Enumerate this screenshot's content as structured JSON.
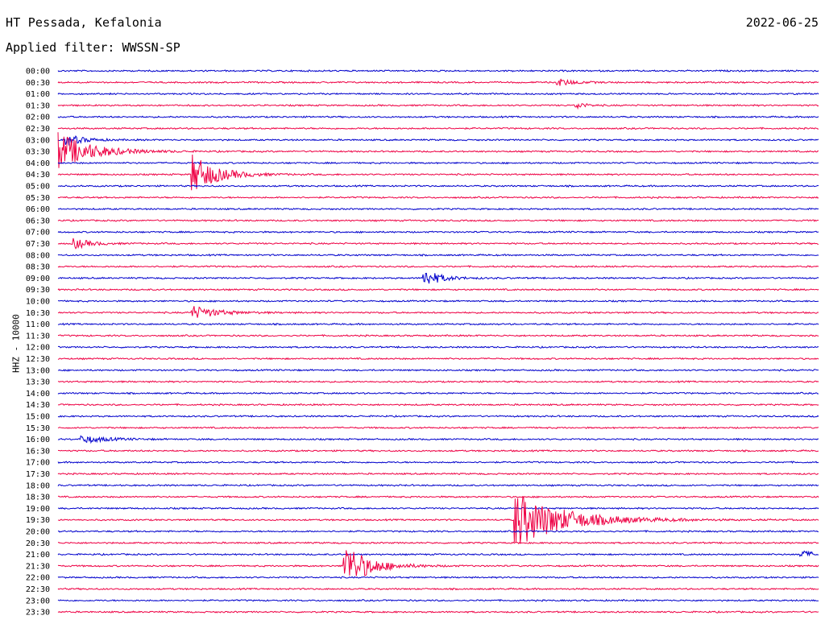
{
  "header": {
    "station": "HT Pessada, Kefalonia",
    "date": "2022-06-25",
    "filter": "Applied filter: WWSSN-SP"
  },
  "chart_data": {
    "type": "line",
    "title": "HT Pessada, Kefalonia",
    "ylabel": "HHZ - 10000",
    "colors": [
      "#0000cc",
      "#ee0044"
    ],
    "row_labels": [
      "00:00",
      "00:30",
      "01:00",
      "01:30",
      "02:00",
      "02:30",
      "03:00",
      "03:30",
      "04:00",
      "04:30",
      "05:00",
      "05:30",
      "06:00",
      "06:30",
      "07:00",
      "07:30",
      "08:00",
      "08:30",
      "09:00",
      "09:30",
      "10:00",
      "10:30",
      "11:00",
      "11:30",
      "12:00",
      "12:30",
      "13:00",
      "13:30",
      "14:00",
      "14:30",
      "15:00",
      "15:30",
      "16:00",
      "16:30",
      "17:00",
      "17:30",
      "18:00",
      "18:30",
      "19:00",
      "19:30",
      "20:00",
      "20:30",
      "21:00",
      "21:30",
      "22:00",
      "22:30",
      "23:00",
      "23:30"
    ],
    "events": [
      {
        "row": 6,
        "t": 0.01,
        "amp": 8,
        "decay": 0.02
      },
      {
        "row": 7,
        "t": 0.0,
        "amp": 24,
        "decay": 0.04
      },
      {
        "row": 9,
        "t": 0.175,
        "amp": 26,
        "decay": 0.03
      },
      {
        "row": 18,
        "t": 0.48,
        "amp": 12,
        "decay": 0.02
      },
      {
        "row": 21,
        "t": 0.175,
        "amp": 9,
        "decay": 0.03
      },
      {
        "row": 15,
        "t": 0.02,
        "amp": 7,
        "decay": 0.02
      },
      {
        "row": 39,
        "t": 0.6,
        "amp": 36,
        "decay": 0.06
      },
      {
        "row": 43,
        "t": 0.375,
        "amp": 30,
        "decay": 0.03
      },
      {
        "row": 1,
        "t": 0.655,
        "amp": 5,
        "decay": 0.02
      },
      {
        "row": 3,
        "t": 0.68,
        "amp": 6,
        "decay": 0.01
      },
      {
        "row": 32,
        "t": 0.03,
        "amp": 5,
        "decay": 0.03
      },
      {
        "row": 42,
        "t": 0.975,
        "amp": 5,
        "decay": 0.02
      }
    ]
  }
}
